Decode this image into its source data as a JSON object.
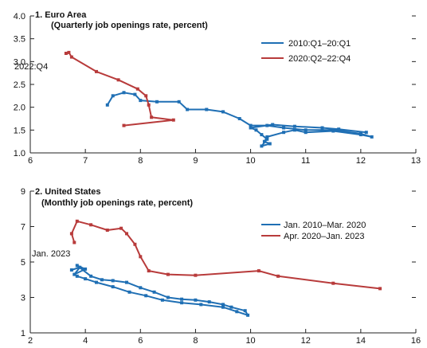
{
  "chart_data": [
    {
      "type": "line",
      "panel_label": "1. Euro Area",
      "subtitle": "(Quarterly job openings rate, percent)",
      "xlabel": "",
      "ylabel": "",
      "xlim": [
        6,
        13
      ],
      "ylim": [
        1.0,
        4.0
      ],
      "xticks": [
        6,
        7,
        8,
        9,
        10,
        11,
        12,
        13
      ],
      "yticks": [
        1.0,
        1.5,
        2.0,
        2.5,
        3.0,
        3.5,
        4.0
      ],
      "grid": false,
      "legend_position": "top-right",
      "annotations": [
        {
          "text": "2022:Q4",
          "x": 6.65,
          "y": 3.18
        }
      ],
      "series": [
        {
          "name": "2010:Q1–20:Q1",
          "color": "#1f6fb4",
          "points": [
            [
              7.4,
              2.05
            ],
            [
              7.5,
              2.25
            ],
            [
              7.7,
              2.32
            ],
            [
              7.9,
              2.28
            ],
            [
              8.0,
              2.15
            ],
            [
              8.3,
              2.12
            ],
            [
              8.7,
              2.12
            ],
            [
              8.85,
              1.95
            ],
            [
              9.2,
              1.95
            ],
            [
              9.5,
              1.9
            ],
            [
              9.8,
              1.75
            ],
            [
              10.0,
              1.6
            ],
            [
              10.3,
              1.6
            ],
            [
              10.6,
              1.55
            ],
            [
              11.0,
              1.5
            ],
            [
              11.5,
              1.5
            ],
            [
              12.0,
              1.42
            ],
            [
              12.2,
              1.35
            ],
            [
              12.0,
              1.4
            ],
            [
              11.5,
              1.48
            ],
            [
              11.0,
              1.45
            ],
            [
              10.8,
              1.5
            ],
            [
              10.6,
              1.45
            ],
            [
              10.3,
              1.35
            ],
            [
              10.25,
              1.25
            ],
            [
              10.35,
              1.2
            ],
            [
              10.2,
              1.15
            ],
            [
              10.3,
              1.3
            ],
            [
              10.2,
              1.4
            ],
            [
              10.1,
              1.5
            ],
            [
              10.0,
              1.55
            ],
            [
              10.4,
              1.62
            ],
            [
              10.8,
              1.58
            ],
            [
              11.3,
              1.55
            ],
            [
              11.6,
              1.52
            ],
            [
              12.1,
              1.45
            ]
          ]
        },
        {
          "name": "2020:Q2–22:Q4",
          "color": "#b83b3b",
          "points": [
            [
              7.7,
              1.6
            ],
            [
              8.6,
              1.72
            ],
            [
              8.2,
              1.78
            ],
            [
              8.15,
              2.05
            ],
            [
              8.1,
              2.25
            ],
            [
              7.95,
              2.4
            ],
            [
              7.6,
              2.6
            ],
            [
              7.2,
              2.78
            ],
            [
              6.75,
              3.1
            ],
            [
              6.7,
              3.2
            ],
            [
              6.65,
              3.18
            ]
          ]
        }
      ]
    },
    {
      "type": "line",
      "panel_label": "2. United States",
      "subtitle": "(Monthly job openings rate, percent)",
      "xlabel": "",
      "ylabel": "",
      "xlim": [
        2,
        16
      ],
      "ylim": [
        1,
        9
      ],
      "xticks": [
        2,
        4,
        6,
        8,
        10,
        12,
        14,
        16
      ],
      "yticks": [
        1,
        3,
        5,
        7,
        9
      ],
      "grid": false,
      "legend_position": "top-right",
      "annotations": [
        {
          "text": "Jan. 2023",
          "x": 3.5,
          "y": 6.1
        }
      ],
      "series": [
        {
          "name": "Jan. 2010–Mar. 2020",
          "color": "#1f6fb4",
          "points": [
            [
              3.5,
              4.55
            ],
            [
              3.8,
              4.7
            ],
            [
              3.6,
              4.3
            ],
            [
              4.0,
              4.6
            ],
            [
              3.7,
              4.8
            ],
            [
              4.2,
              4.2
            ],
            [
              4.6,
              4.0
            ],
            [
              5.0,
              3.95
            ],
            [
              5.5,
              3.85
            ],
            [
              6.0,
              3.55
            ],
            [
              6.5,
              3.3
            ],
            [
              7.0,
              3.0
            ],
            [
              7.5,
              2.9
            ],
            [
              8.0,
              2.85
            ],
            [
              8.5,
              2.75
            ],
            [
              9.0,
              2.6
            ],
            [
              9.3,
              2.45
            ],
            [
              9.8,
              2.25
            ],
            [
              9.9,
              2.0
            ],
            [
              9.5,
              2.2
            ],
            [
              9.0,
              2.45
            ],
            [
              8.2,
              2.6
            ],
            [
              7.5,
              2.7
            ],
            [
              6.8,
              2.85
            ],
            [
              6.2,
              3.1
            ],
            [
              5.6,
              3.3
            ],
            [
              5.0,
              3.6
            ],
            [
              4.4,
              3.85
            ],
            [
              4.0,
              4.05
            ],
            [
              3.7,
              4.2
            ]
          ]
        },
        {
          "name": "Apr. 2020–Jan. 2023",
          "color": "#b83b3b",
          "points": [
            [
              14.7,
              3.5
            ],
            [
              13.0,
              3.8
            ],
            [
              11.0,
              4.2
            ],
            [
              10.3,
              4.5
            ],
            [
              8.0,
              4.25
            ],
            [
              7.0,
              4.3
            ],
            [
              6.3,
              4.5
            ],
            [
              6.0,
              5.3
            ],
            [
              5.8,
              6.0
            ],
            [
              5.5,
              6.6
            ],
            [
              5.3,
              6.9
            ],
            [
              4.8,
              6.8
            ],
            [
              4.2,
              7.1
            ],
            [
              3.7,
              7.3
            ],
            [
              3.5,
              6.6
            ],
            [
              3.6,
              6.1
            ]
          ]
        }
      ]
    }
  ]
}
